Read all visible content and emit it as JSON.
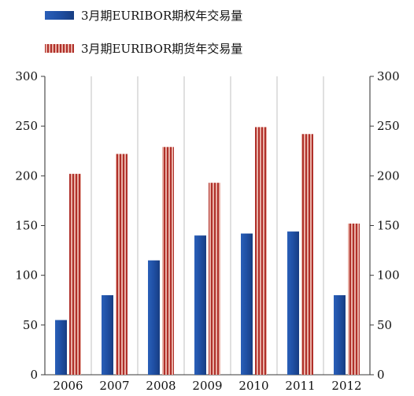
{
  "chart_data": {
    "type": "bar",
    "categories": [
      "2006",
      "2007",
      "2008",
      "2009",
      "2010",
      "2011",
      "2012"
    ],
    "series": [
      {
        "name": "3月期EURIBOR期权年交易量",
        "values": [
          55,
          80,
          115,
          140,
          142,
          144,
          80
        ],
        "color": "#1f4fa3"
      },
      {
        "name": "3月期EURIBOR期货年交易量",
        "values": [
          202,
          222,
          229,
          193,
          249,
          242,
          152
        ],
        "color": "#b0302a"
      }
    ],
    "yticks": [
      "0",
      "50",
      "100",
      "150",
      "200",
      "250",
      "300"
    ],
    "ylim": [
      0,
      300
    ],
    "grid": "vertical category separators",
    "legend_position": "top-left",
    "y_axis": "left and right"
  }
}
